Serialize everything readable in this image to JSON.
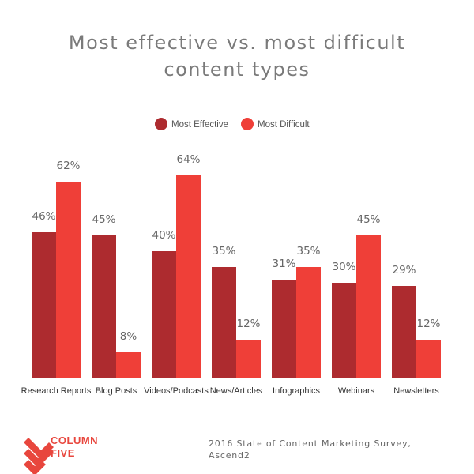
{
  "chart_data": {
    "type": "bar",
    "title_lines": [
      "Most effective vs. most difficult",
      "content types"
    ],
    "categories": [
      "Research Reports",
      "Blog Posts",
      "Videos/Podcasts",
      "News/Articles",
      "Infographics",
      "Webinars",
      "Newsletters"
    ],
    "series": [
      {
        "name": "Most Effective",
        "color": "#ad2b2f",
        "values": [
          46,
          45,
          40,
          35,
          31,
          30,
          29
        ],
        "labels": [
          "46%",
          "45%",
          "40%",
          "35%",
          "31%",
          "30%",
          "29%"
        ]
      },
      {
        "name": "Most Difficult",
        "color": "#ef3f38",
        "values": [
          62,
          8,
          64,
          12,
          35,
          45,
          12
        ],
        "labels": [
          "62%",
          "8%",
          "64%",
          "12%",
          "35%",
          "45%",
          "12%"
        ]
      }
    ],
    "ylim": [
      0,
      100
    ],
    "grid": false,
    "legend": "top-center",
    "xlabel": "",
    "ylabel": ""
  },
  "footer": {
    "source_lines": [
      "2016 State of Content Marketing Survey,",
      "Ascend2"
    ],
    "brand_lines": [
      "COLUMN",
      "FIVE"
    ],
    "brand_color": "#e8463d"
  }
}
